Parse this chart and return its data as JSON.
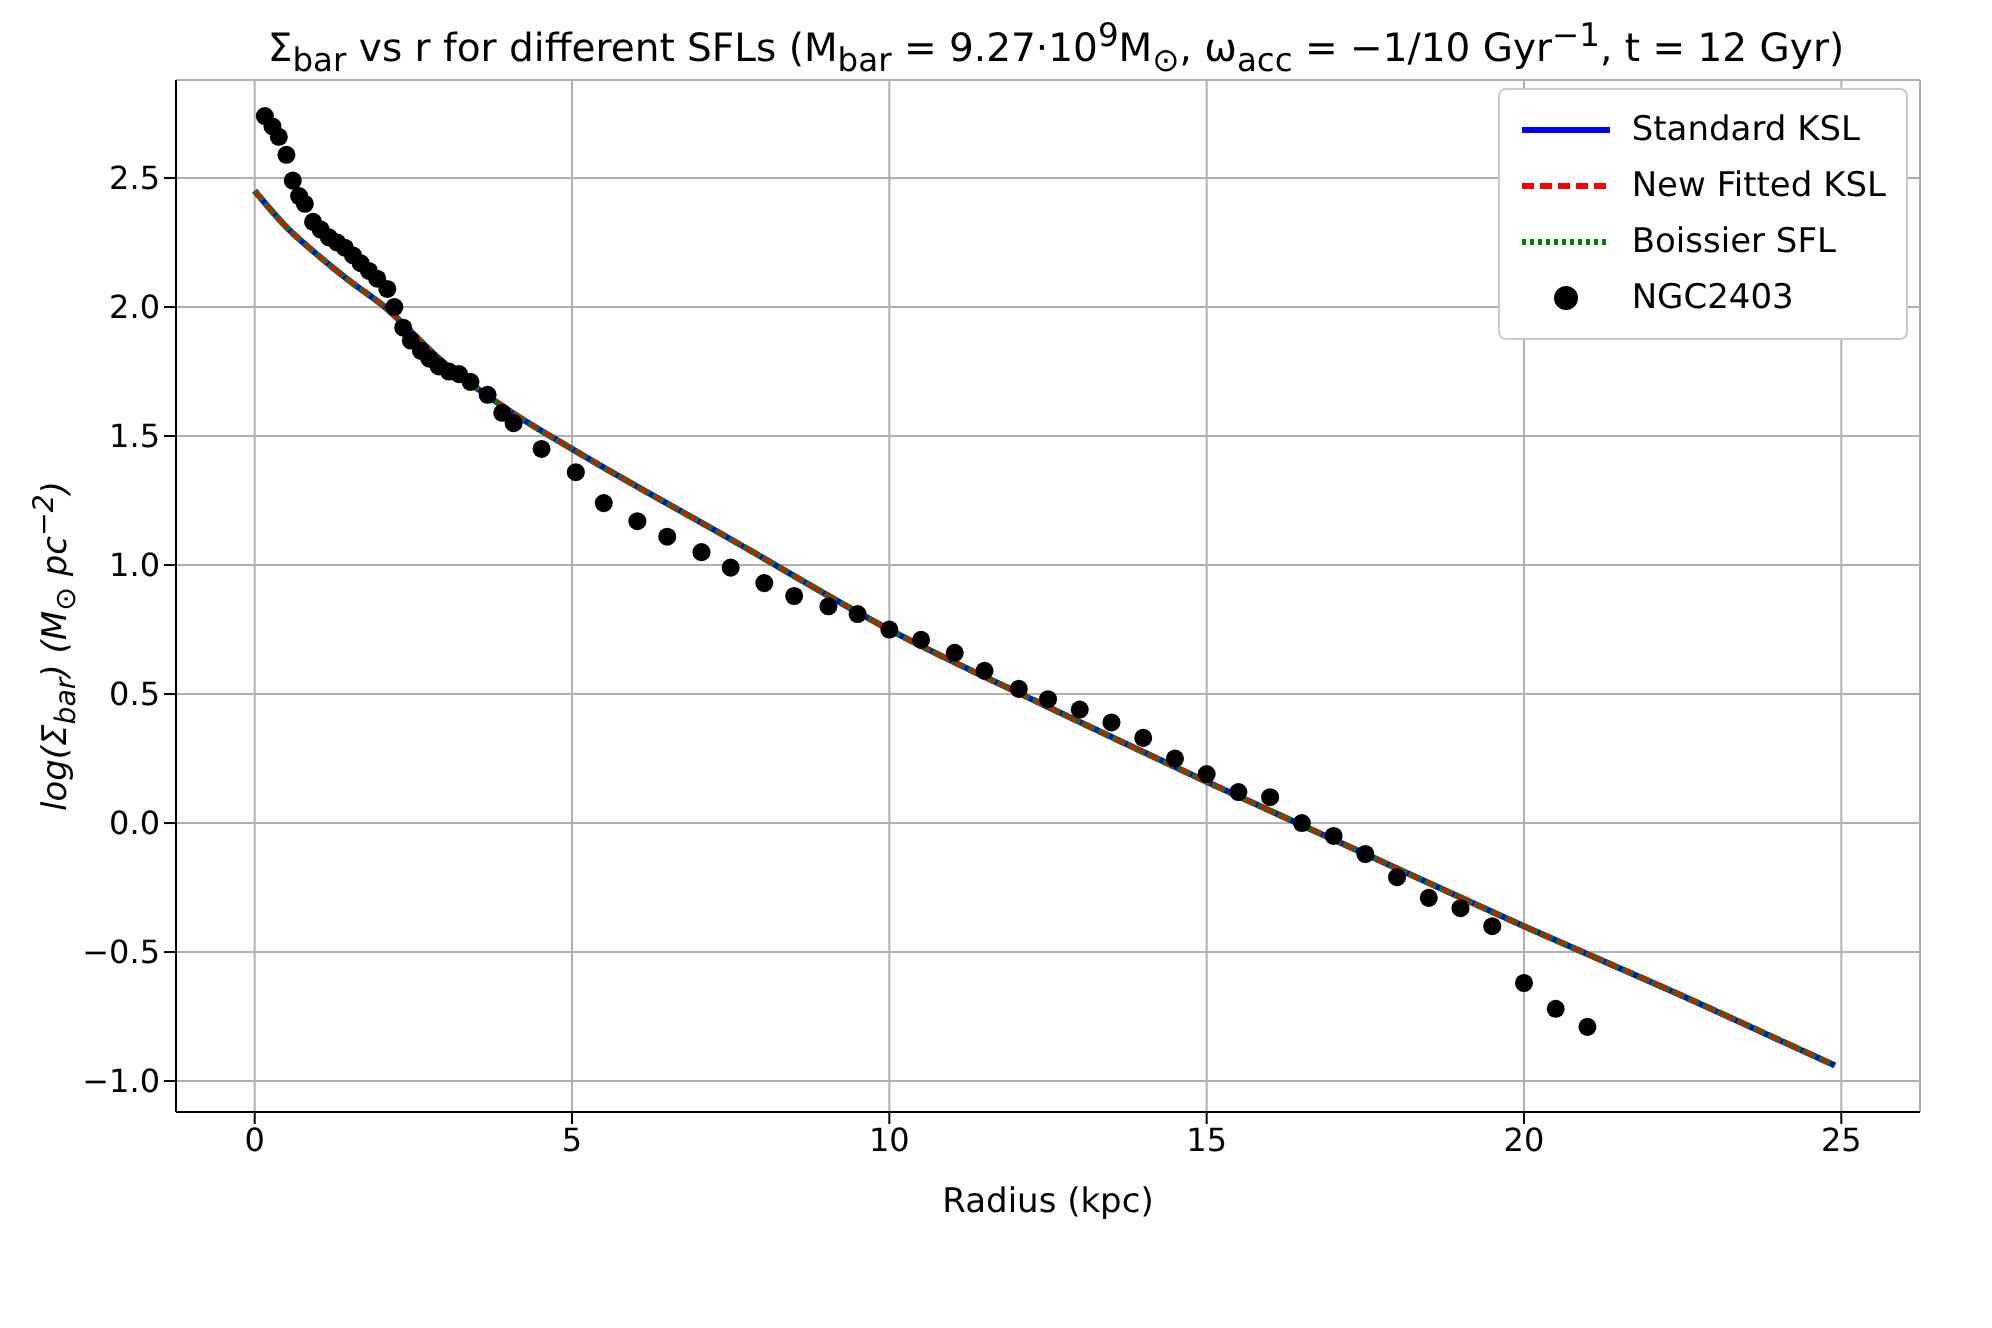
{
  "chart_data": {
    "type": "line",
    "title": "Σ$_{bar}$ vs r for different SFLs (M$_{bar}$ = 9.27·10$^{9}$M$_{⊙}$, ω$_{acc}$ = −1/10 Gyr$^{−1}$, t = 12 Gyr)",
    "xlabel": "Radius (kpc)",
    "ylabel": "log(Σ$_{bar}$) (M$_{⊙}$ pc$^{−2}$)",
    "xlim": [
      -1.24,
      26.24
    ],
    "xticks": [
      0,
      5,
      10,
      15,
      20,
      25
    ],
    "ylim": [
      -1.12,
      2.88
    ],
    "yticks": [
      {
        "value": -1,
        "label": "−1.0"
      },
      {
        "value": -0.5,
        "label": "−0.5"
      },
      {
        "value": 0,
        "label": "0.0"
      },
      {
        "value": 0.5,
        "label": "0.5"
      },
      {
        "value": 1,
        "label": "1.0"
      },
      {
        "value": 1.5,
        "label": "1.5"
      },
      {
        "value": 2,
        "label": "2.0"
      },
      {
        "value": 2.5,
        "label": "2.5"
      }
    ],
    "grid": true,
    "legend": "top right",
    "marker": "none",
    "series": [
      {
        "name": "Standard KSL",
        "color": "#0000ff",
        "line_style": "solid",
        "x": [
          0,
          0.5,
          1,
          1.5,
          2,
          3,
          4,
          5,
          7.5,
          10,
          12.5,
          15,
          17.5,
          20,
          22.5,
          24.9
        ],
        "values": [
          2.45,
          2.31,
          2.2,
          2.1,
          2.01,
          1.78,
          1.6,
          1.45,
          1.1,
          0.75,
          0.45,
          0.16,
          -0.12,
          -0.4,
          -0.67,
          -0.94
        ]
      },
      {
        "name": "New Fitted KSL",
        "color": "#ff0000",
        "line_style": "dashed",
        "x": [
          0,
          0.5,
          1,
          1.5,
          2,
          3,
          4,
          5,
          7.5,
          10,
          12.5,
          15,
          17.5,
          20,
          22.5,
          24.9
        ],
        "values": [
          2.45,
          2.31,
          2.2,
          2.1,
          2.01,
          1.78,
          1.6,
          1.45,
          1.1,
          0.75,
          0.45,
          0.16,
          -0.12,
          -0.4,
          -0.67,
          -0.94
        ]
      },
      {
        "name": "Boissier SFL",
        "color": "#008000",
        "line_style": "dotted",
        "x": [
          0,
          0.5,
          1,
          1.5,
          2,
          3,
          4,
          5,
          7.5,
          10,
          12.5,
          15,
          17.5,
          20,
          22.5,
          24.9
        ],
        "values": [
          2.45,
          2.31,
          2.2,
          2.1,
          2.01,
          1.78,
          1.6,
          1.45,
          1.1,
          0.75,
          0.45,
          0.16,
          -0.12,
          -0.4,
          -0.67,
          -0.94
        ]
      },
      {
        "name": "NGC2403",
        "type": "scatter",
        "color": "#000000",
        "marker": "circle",
        "x": [
          0.16,
          0.28,
          0.38,
          0.5,
          0.6,
          0.7,
          0.79,
          0.92,
          1.04,
          1.17,
          1.3,
          1.42,
          1.55,
          1.67,
          1.8,
          1.93,
          2.09,
          2.2,
          2.34,
          2.46,
          2.62,
          2.75,
          2.9,
          3.06,
          3.22,
          3.4,
          3.67,
          3.9,
          4.08,
          4.52,
          5.06,
          5.5,
          6.03,
          6.5,
          7.04,
          7.5,
          8.03,
          8.5,
          9.04,
          9.5,
          10.0,
          10.5,
          11.03,
          11.5,
          12.04,
          12.5,
          13.0,
          13.5,
          14.0,
          14.5,
          15.0,
          15.5,
          16.0,
          16.5,
          17.0,
          17.5,
          18.0,
          18.5,
          19.0,
          19.5,
          20.0,
          20.5,
          21.0
        ],
        "values": [
          2.74,
          2.7,
          2.66,
          2.59,
          2.49,
          2.43,
          2.4,
          2.33,
          2.3,
          2.27,
          2.25,
          2.23,
          2.2,
          2.17,
          2.14,
          2.11,
          2.07,
          2.0,
          1.92,
          1.87,
          1.83,
          1.8,
          1.77,
          1.75,
          1.74,
          1.71,
          1.66,
          1.59,
          1.55,
          1.45,
          1.36,
          1.24,
          1.17,
          1.11,
          1.05,
          0.99,
          0.93,
          0.88,
          0.84,
          0.81,
          0.75,
          0.71,
          0.66,
          0.59,
          0.52,
          0.48,
          0.44,
          0.39,
          0.33,
          0.25,
          0.19,
          0.12,
          0.1,
          0.0,
          -0.05,
          -0.12,
          -0.21,
          -0.29,
          -0.33,
          -0.4,
          -0.62,
          -0.72,
          -0.79
        ]
      }
    ]
  }
}
